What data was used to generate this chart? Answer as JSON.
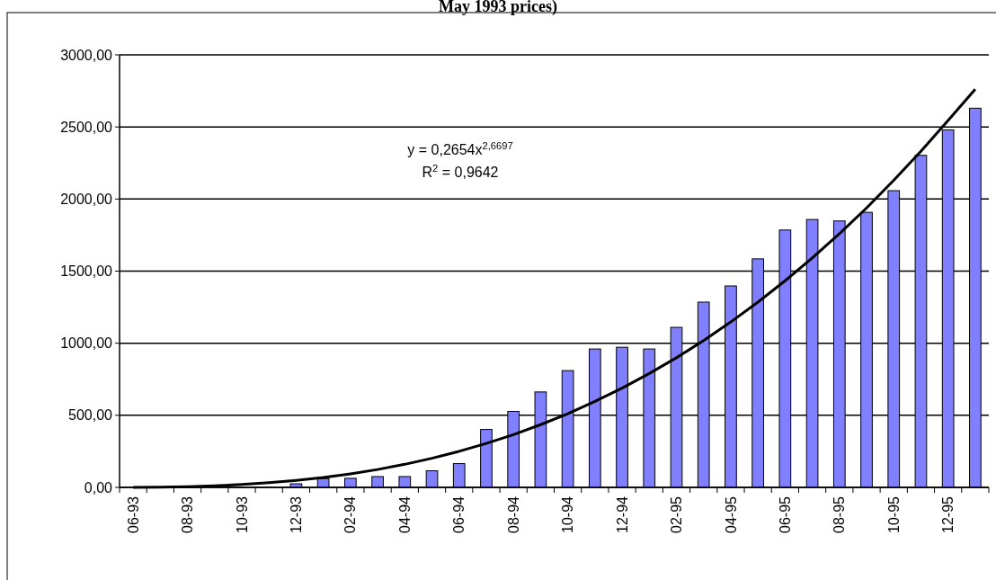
{
  "chart_data": {
    "type": "bar",
    "title": "May 1993 prices)",
    "categories": [
      "06-93",
      null,
      "08-93",
      null,
      "10-93",
      null,
      "12-93",
      null,
      "02-94",
      null,
      "04-94",
      null,
      "06-94",
      null,
      "08-94",
      null,
      "10-94",
      null,
      "12-94",
      null,
      "02-95",
      null,
      "04-95",
      null,
      "06-95",
      null,
      "08-95",
      null,
      "10-95",
      null,
      "12-95",
      null
    ],
    "series": [
      {
        "color": "#8080ff",
        "values": [
          null,
          null,
          5,
          null,
          null,
          null,
          25,
          61,
          63,
          75,
          75,
          115,
          165,
          402,
          527,
          662,
          810,
          960,
          972,
          960,
          1110,
          1285,
          1397,
          1585,
          1785,
          1858,
          1848,
          1908,
          2058,
          2303,
          2480,
          2630
        ]
      },
      {
        "type": "line",
        "color": "#000000",
        "values": [
          0,
          2,
          5,
          11,
          20,
          32,
          48,
          68,
          94,
          124,
          160,
          202,
          250,
          305,
          366,
          435,
          511,
          596,
          688,
          790,
          899,
          1018,
          1147,
          1285,
          1433,
          1591,
          1759,
          1938,
          2130,
          2331,
          2545,
          2762
        ]
      }
    ],
    "ylim": [
      0,
      3000
    ],
    "yticks": [
      {
        "value": 0,
        "label": "0,00"
      },
      {
        "value": 500,
        "label": "500,00"
      },
      {
        "value": 1000,
        "label": "1000,00"
      },
      {
        "value": 1500,
        "label": "1500,00"
      },
      {
        "value": 2000,
        "label": "2000,00"
      },
      {
        "value": 2500,
        "label": "2500,00"
      },
      {
        "value": 3000,
        "label": "3000,00"
      }
    ],
    "grid": "y",
    "annotations": [
      "y = 0,2654x$^{2,6697}$",
      "R$^{2}$ = 0,9642"
    ]
  }
}
